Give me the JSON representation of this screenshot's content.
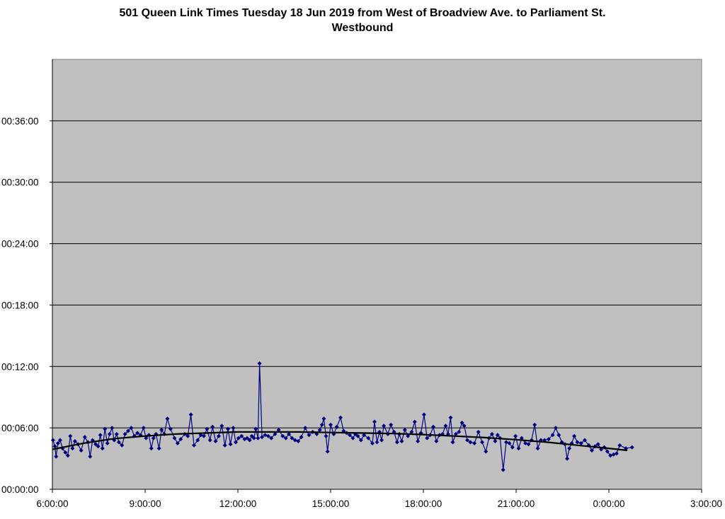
{
  "chart_data": {
    "type": "line",
    "title": "501 Queen Link Times Tuesday 18 Jun 2019 from West of Broadview Ave. to Parliament St.",
    "subtitle": "Westbound",
    "xlabel": "",
    "ylabel": "",
    "x_ticks": [
      "6:00:00",
      "9:00:00",
      "12:00:00",
      "15:00:00",
      "18:00:00",
      "21:00:00",
      "0:00:00",
      "3:00:00"
    ],
    "y_ticks": [
      "00:00:00",
      "00:06:00",
      "00:12:00",
      "00:18:00",
      "00:24:00",
      "00:30:00",
      "00:36:00"
    ],
    "x_range_hours": [
      6,
      27
    ],
    "y_range_minutes": [
      0,
      42
    ],
    "grid": "horizontal major gridlines",
    "plot_background": "#c0c0c0",
    "series_color": "#000080",
    "trend_color": "#000000",
    "series": [
      {
        "values": [
          [
            6.02,
            4.8
          ],
          [
            6.08,
            4.2
          ],
          [
            6.12,
            3.2
          ],
          [
            6.18,
            4.5
          ],
          [
            6.25,
            4.8
          ],
          [
            6.33,
            4.0
          ],
          [
            6.42,
            3.6
          ],
          [
            6.5,
            3.3
          ],
          [
            6.58,
            5.2
          ],
          [
            6.65,
            4.0
          ],
          [
            6.73,
            4.7
          ],
          [
            6.83,
            4.4
          ],
          [
            6.93,
            3.8
          ],
          [
            7.05,
            5.1
          ],
          [
            7.15,
            4.6
          ],
          [
            7.22,
            3.2
          ],
          [
            7.3,
            4.8
          ],
          [
            7.4,
            4.4
          ],
          [
            7.48,
            4.2
          ],
          [
            7.55,
            5.3
          ],
          [
            7.62,
            4.0
          ],
          [
            7.7,
            5.9
          ],
          [
            7.78,
            4.5
          ],
          [
            7.85,
            5.4
          ],
          [
            7.93,
            6.0
          ],
          [
            8.0,
            4.8
          ],
          [
            8.08,
            5.4
          ],
          [
            8.15,
            4.6
          ],
          [
            8.25,
            4.3
          ],
          [
            8.35,
            5.4
          ],
          [
            8.45,
            5.7
          ],
          [
            8.55,
            6.0
          ],
          [
            8.65,
            5.2
          ],
          [
            8.75,
            5.5
          ],
          [
            8.85,
            5.3
          ],
          [
            8.95,
            6.0
          ],
          [
            9.03,
            5.0
          ],
          [
            9.12,
            5.3
          ],
          [
            9.2,
            4.0
          ],
          [
            9.27,
            5.0
          ],
          [
            9.35,
            5.4
          ],
          [
            9.45,
            4.0
          ],
          [
            9.53,
            5.8
          ],
          [
            9.62,
            5.4
          ],
          [
            9.72,
            6.9
          ],
          [
            9.82,
            5.9
          ],
          [
            9.95,
            5.0
          ],
          [
            10.05,
            4.5
          ],
          [
            10.15,
            4.9
          ],
          [
            10.28,
            5.4
          ],
          [
            10.38,
            5.2
          ],
          [
            10.48,
            7.3
          ],
          [
            10.58,
            4.3
          ],
          [
            10.7,
            4.8
          ],
          [
            10.8,
            5.3
          ],
          [
            10.9,
            5.2
          ],
          [
            11.0,
            5.9
          ],
          [
            11.1,
            4.8
          ],
          [
            11.18,
            6.1
          ],
          [
            11.28,
            4.7
          ],
          [
            11.38,
            5.2
          ],
          [
            11.48,
            6.2
          ],
          [
            11.58,
            4.3
          ],
          [
            11.68,
            5.9
          ],
          [
            11.76,
            4.4
          ],
          [
            11.85,
            6.0
          ],
          [
            11.93,
            4.6
          ],
          [
            12.02,
            5.0
          ],
          [
            12.12,
            5.2
          ],
          [
            12.22,
            4.9
          ],
          [
            12.3,
            5.0
          ],
          [
            12.38,
            4.8
          ],
          [
            12.45,
            5.2
          ],
          [
            12.52,
            5.0
          ],
          [
            12.58,
            5.9
          ],
          [
            12.65,
            5.0
          ],
          [
            12.7,
            12.3
          ],
          [
            12.78,
            5.1
          ],
          [
            12.88,
            5.3
          ],
          [
            12.98,
            5.2
          ],
          [
            13.08,
            5.0
          ],
          [
            13.2,
            5.4
          ],
          [
            13.32,
            5.8
          ],
          [
            13.45,
            5.2
          ],
          [
            13.55,
            5.0
          ],
          [
            13.65,
            5.4
          ],
          [
            13.75,
            5.0
          ],
          [
            13.85,
            4.8
          ],
          [
            13.95,
            4.7
          ],
          [
            14.05,
            5.1
          ],
          [
            14.18,
            6.0
          ],
          [
            14.3,
            5.3
          ],
          [
            14.42,
            5.6
          ],
          [
            14.55,
            5.4
          ],
          [
            14.65,
            5.8
          ],
          [
            14.72,
            6.3
          ],
          [
            14.78,
            6.9
          ],
          [
            14.85,
            5.2
          ],
          [
            14.9,
            3.7
          ],
          [
            15.0,
            6.3
          ],
          [
            15.1,
            5.4
          ],
          [
            15.2,
            6.1
          ],
          [
            15.32,
            7.0
          ],
          [
            15.42,
            5.7
          ],
          [
            15.52,
            5.5
          ],
          [
            15.62,
            5.3
          ],
          [
            15.72,
            5.0
          ],
          [
            15.8,
            5.4
          ],
          [
            15.88,
            5.2
          ],
          [
            15.98,
            4.8
          ],
          [
            16.08,
            5.3
          ],
          [
            16.22,
            5.0
          ],
          [
            16.35,
            4.5
          ],
          [
            16.42,
            6.6
          ],
          [
            16.5,
            4.6
          ],
          [
            16.58,
            5.6
          ],
          [
            16.65,
            4.8
          ],
          [
            16.72,
            6.2
          ],
          [
            16.85,
            5.4
          ],
          [
            16.95,
            6.3
          ],
          [
            17.05,
            5.6
          ],
          [
            17.15,
            4.6
          ],
          [
            17.22,
            5.4
          ],
          [
            17.3,
            4.7
          ],
          [
            17.4,
            5.8
          ],
          [
            17.5,
            5.2
          ],
          [
            17.62,
            5.6
          ],
          [
            17.72,
            6.6
          ],
          [
            17.82,
            4.7
          ],
          [
            17.92,
            5.5
          ],
          [
            18.02,
            7.3
          ],
          [
            18.12,
            5.0
          ],
          [
            18.22,
            5.3
          ],
          [
            18.32,
            6.1
          ],
          [
            18.42,
            4.7
          ],
          [
            18.52,
            5.3
          ],
          [
            18.62,
            5.4
          ],
          [
            18.72,
            6.2
          ],
          [
            18.8,
            5.4
          ],
          [
            18.88,
            7.0
          ],
          [
            18.95,
            4.6
          ],
          [
            19.05,
            5.4
          ],
          [
            19.15,
            5.6
          ],
          [
            19.25,
            6.5
          ],
          [
            19.32,
            6.2
          ],
          [
            19.42,
            4.8
          ],
          [
            19.52,
            4.6
          ],
          [
            19.65,
            4.5
          ],
          [
            19.78,
            5.6
          ],
          [
            19.9,
            4.6
          ],
          [
            20.02,
            3.7
          ],
          [
            20.12,
            5.0
          ],
          [
            20.22,
            5.4
          ],
          [
            20.32,
            4.7
          ],
          [
            20.4,
            5.3
          ],
          [
            20.48,
            5.0
          ],
          [
            20.58,
            1.9
          ],
          [
            20.68,
            4.6
          ],
          [
            20.78,
            4.5
          ],
          [
            20.88,
            4.1
          ],
          [
            20.98,
            5.2
          ],
          [
            21.08,
            4.0
          ],
          [
            21.18,
            5.0
          ],
          [
            21.3,
            4.5
          ],
          [
            21.4,
            4.4
          ],
          [
            21.5,
            4.8
          ],
          [
            21.6,
            6.3
          ],
          [
            21.7,
            4.0
          ],
          [
            21.8,
            4.8
          ],
          [
            21.92,
            4.8
          ],
          [
            22.05,
            4.9
          ],
          [
            22.18,
            5.3
          ],
          [
            22.28,
            6.0
          ],
          [
            22.38,
            5.3
          ],
          [
            22.48,
            4.6
          ],
          [
            22.58,
            4.4
          ],
          [
            22.65,
            3.0
          ],
          [
            22.72,
            4.0
          ],
          [
            22.8,
            4.5
          ],
          [
            22.88,
            5.2
          ],
          [
            22.98,
            4.6
          ],
          [
            23.1,
            4.5
          ],
          [
            23.22,
            4.8
          ],
          [
            23.35,
            4.3
          ],
          [
            23.45,
            3.8
          ],
          [
            23.55,
            4.2
          ],
          [
            23.65,
            4.4
          ],
          [
            23.75,
            3.9
          ],
          [
            23.85,
            4.1
          ],
          [
            23.95,
            3.7
          ],
          [
            24.05,
            3.3
          ],
          [
            24.15,
            3.4
          ],
          [
            24.25,
            3.5
          ],
          [
            24.35,
            4.3
          ],
          [
            24.55,
            4.0
          ],
          [
            24.75,
            4.1
          ]
        ]
      }
    ],
    "trendline": [
      [
        6.0,
        3.9
      ],
      [
        7.0,
        4.5
      ],
      [
        8.0,
        4.95
      ],
      [
        9.0,
        5.2
      ],
      [
        10.0,
        5.4
      ],
      [
        11.0,
        5.5
      ],
      [
        12.0,
        5.6
      ],
      [
        13.0,
        5.6
      ],
      [
        14.0,
        5.6
      ],
      [
        15.0,
        5.55
      ],
      [
        16.0,
        5.5
      ],
      [
        17.0,
        5.45
      ],
      [
        18.0,
        5.35
      ],
      [
        19.0,
        5.2
      ],
      [
        20.0,
        5.05
      ],
      [
        21.0,
        4.85
      ],
      [
        22.0,
        4.6
      ],
      [
        23.0,
        4.3
      ],
      [
        24.0,
        4.0
      ],
      [
        24.6,
        3.8
      ]
    ]
  }
}
